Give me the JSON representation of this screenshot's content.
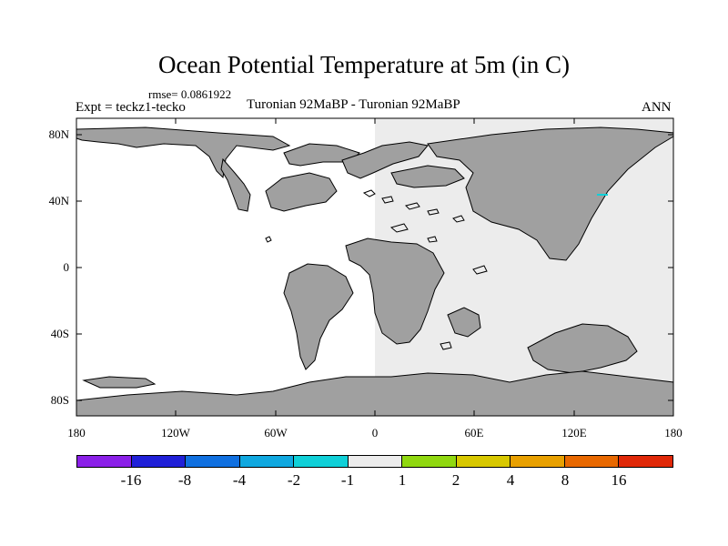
{
  "title": "Ocean Potential Temperature at 5m (in C)",
  "rmse_label": "rmse= 0.0861922",
  "experiment_label": "Expt = teckz1-tecko",
  "period_label": "Turonian  92MaBP - Turonian  92MaBP",
  "season_label": "ANN",
  "y_ticks": [
    "80N",
    "40N",
    "0",
    "40S",
    "80S"
  ],
  "x_ticks": [
    "180",
    "120W",
    "60W",
    "0",
    "60E",
    "120E",
    "180"
  ],
  "colorbar": {
    "colors": [
      "#8b20e8",
      "#2020d8",
      "#1070e0",
      "#10a8e0",
      "#10d0d8",
      "#ececec",
      "#90d810",
      "#d8c800",
      "#e8a000",
      "#e86800",
      "#e02808"
    ],
    "labels": [
      "-16",
      "-8",
      "-4",
      "-2",
      "-1",
      "1",
      "2",
      "4",
      "8",
      "16"
    ]
  },
  "map_colors": {
    "land": "#a0a0a0",
    "ocean_zero_east": "#ececec",
    "ocean_west": "#ffffff",
    "highlight": "#10d0d8"
  }
}
